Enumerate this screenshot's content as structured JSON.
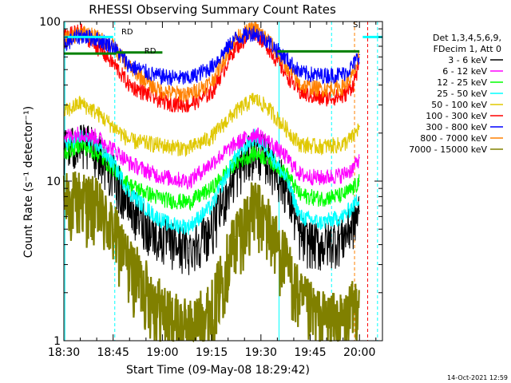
{
  "chart_data": {
    "type": "line",
    "title": "RHESSI Observing Summary Count Rates",
    "xlabel": "Start Time (09-May-08 18:29:42)",
    "ylabel": "Count Rate (s⁻¹ detector⁻¹)",
    "yscale": "log",
    "ylim": [
      1,
      100
    ],
    "xlim_minutes": [
      0,
      97
    ],
    "x_tick_labels": [
      "18:30",
      "18:45",
      "19:00",
      "19:15",
      "19:30",
      "19:45",
      "20:00"
    ],
    "x_tick_minutes": [
      0,
      15,
      30,
      45,
      60,
      75,
      90
    ],
    "y_tick_labels": [
      "1",
      "10",
      "100"
    ],
    "y_tick_values": [
      1,
      10,
      100
    ],
    "legend_header": [
      "Det 1,3,4,5,6,9,",
      "FDecim 1, Att 0"
    ],
    "legend_placement": "right",
    "footer_date": "14-Oct-2021 12:59",
    "annotations": [
      {
        "text": "RD",
        "minute": 17.5,
        "y": 83
      },
      {
        "text": "RD",
        "minute": 24.5,
        "y": 63
      },
      {
        "text": "S",
        "minute": 88,
        "y": 92
      }
    ],
    "series": [
      {
        "name": "3 - 6 keV",
        "color": "#000000",
        "x": [
          0,
          5,
          10,
          15,
          20,
          28,
          32,
          38,
          45,
          52,
          58,
          62,
          68,
          72,
          78,
          85,
          88,
          90
        ],
        "y": [
          16,
          17,
          16,
          11,
          7,
          4.6,
          4.2,
          3.8,
          5,
          11,
          16,
          14,
          9,
          4.5,
          4.0,
          4.5,
          5.5,
          6.5
        ]
      },
      {
        "name": "6 - 12 keV",
        "color": "#ff00ff",
        "x": [
          0,
          5,
          10,
          15,
          20,
          28,
          32,
          38,
          45,
          52,
          58,
          62,
          68,
          72,
          78,
          85,
          88,
          90
        ],
        "y": [
          19,
          20,
          19,
          16,
          13,
          11,
          10.5,
          10,
          13,
          17,
          20,
          18,
          14,
          11,
          10.5,
          11,
          12,
          14
        ]
      },
      {
        "name": "12 - 25 keV",
        "color": "#00ff00",
        "x": [
          0,
          5,
          10,
          15,
          20,
          28,
          32,
          38,
          45,
          52,
          58,
          62,
          68,
          72,
          78,
          85,
          88,
          90
        ],
        "y": [
          15,
          17,
          15,
          12,
          9.5,
          8,
          7.6,
          7.4,
          9,
          13,
          15,
          14,
          11,
          8.2,
          7.8,
          8.2,
          9,
          10
        ]
      },
      {
        "name": "25 - 50 keV",
        "color": "#00ffff",
        "x": [
          0,
          5,
          10,
          15,
          20,
          28,
          32,
          38,
          45,
          52,
          58,
          62,
          68,
          72,
          78,
          85,
          88,
          90
        ],
        "y": [
          17,
          19,
          17,
          13,
          8.5,
          6,
          5.4,
          5.2,
          7,
          14,
          19,
          16,
          10,
          6,
          5.5,
          6,
          7,
          8
        ]
      },
      {
        "name": "50 - 100 keV",
        "color": "#e0c800",
        "x": [
          0,
          5,
          10,
          15,
          20,
          28,
          32,
          38,
          45,
          52,
          58,
          62,
          68,
          72,
          78,
          85,
          88,
          90
        ],
        "y": [
          27,
          31,
          27,
          22,
          18,
          17,
          16.5,
          16,
          19,
          27,
          33,
          29,
          21,
          17,
          16.5,
          17,
          19,
          22
        ]
      },
      {
        "name": "100 - 300 keV",
        "color": "#ff0000",
        "x": [
          0,
          5,
          10,
          15,
          20,
          28,
          32,
          38,
          45,
          52,
          58,
          62,
          68,
          72,
          78,
          85,
          88,
          90
        ],
        "y": [
          80,
          88,
          70,
          55,
          40,
          33,
          31,
          30,
          36,
          68,
          88,
          70,
          46,
          36,
          33,
          34,
          40,
          55
        ]
      },
      {
        "name": "300 - 800 keV",
        "color": "#0000ff",
        "x": [
          0,
          5,
          10,
          15,
          20,
          28,
          32,
          38,
          45,
          52,
          58,
          62,
          68,
          72,
          78,
          85,
          88,
          90
        ],
        "y": [
          72,
          82,
          78,
          70,
          53,
          46,
          45,
          44,
          52,
          78,
          86,
          76,
          58,
          48,
          46,
          47,
          53,
          62
        ]
      },
      {
        "name": "800 - 7000 keV",
        "color": "#ff8000",
        "x": [
          0,
          5,
          10,
          15,
          20,
          28,
          32,
          38,
          45,
          52,
          58,
          62,
          68,
          72,
          78,
          85,
          88,
          90
        ],
        "y": [
          76,
          86,
          80,
          70,
          52,
          38,
          36,
          35,
          42,
          78,
          92,
          78,
          52,
          40,
          38,
          39,
          46,
          60
        ]
      },
      {
        "name": "7000 - 15000 keV",
        "color": "#808000",
        "x": [
          0,
          5,
          10,
          15,
          20,
          28,
          32,
          38,
          45,
          52,
          58,
          62,
          68,
          72,
          78,
          85,
          88,
          90
        ],
        "y": [
          7.5,
          8,
          7,
          5,
          3,
          1.8,
          1.4,
          1.2,
          1.6,
          4.5,
          7,
          5.5,
          3,
          1.8,
          1.4,
          1.3,
          1.6,
          2
        ]
      }
    ]
  }
}
